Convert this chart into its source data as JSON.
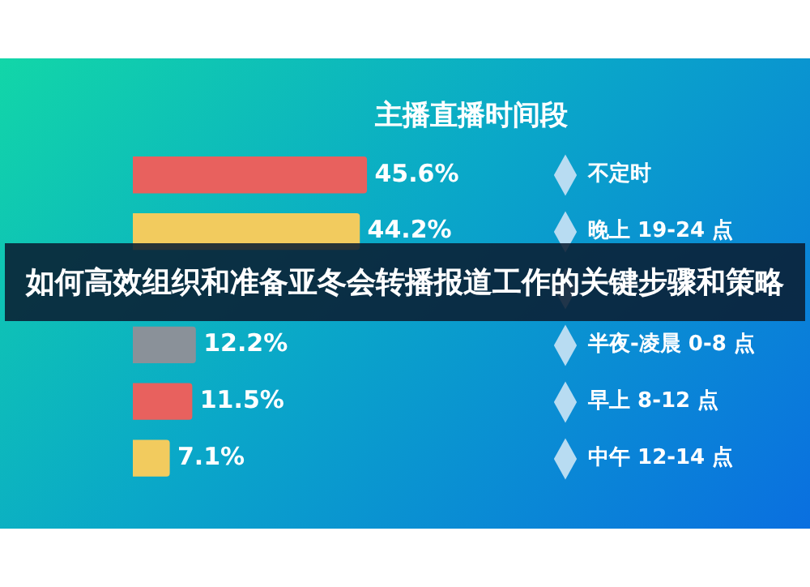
{
  "chart_data": {
    "type": "bar",
    "orientation": "horizontal",
    "title": "主播直播时间段",
    "categories": [
      "不定时",
      "晚上 19-24 点",
      null,
      "半夜-凌晨 0-8 点",
      "早上 8-12 点",
      "中午 12-14 点"
    ],
    "values": [
      45.6,
      44.2,
      null,
      12.2,
      11.5,
      7.1
    ],
    "colors": [
      "#e8615e",
      "#f2cb5e",
      "#3a3f44",
      "#8a9199",
      "#e8615e",
      "#f2cb5e"
    ],
    "value_labels": [
      "45.6%",
      "44.2%",
      null,
      "12.2%",
      "11.5%",
      "7.1%"
    ],
    "legend": false,
    "grid": false,
    "tick_labels": "y",
    "annotations": [
      "如何高效组织和准备亚冬会转播报道工作的关键步骤和策略"
    ]
  }
}
